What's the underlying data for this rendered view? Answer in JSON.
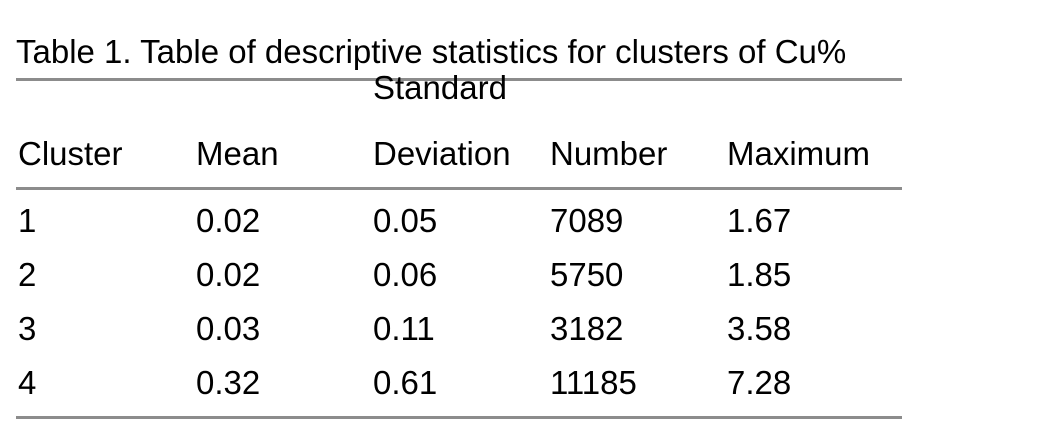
{
  "caption": "Table 1. Table of descriptive statistics for clusters of Cu%",
  "columns": {
    "cluster": "Cluster",
    "mean": "Mean",
    "sd_line1": "Standard",
    "sd_line2": "Deviation",
    "number": "Number",
    "maximum": "Maximum"
  },
  "rows": [
    {
      "cluster": "1",
      "mean": "0.02",
      "sd": "0.05",
      "number": "7089",
      "maximum": "1.67"
    },
    {
      "cluster": "2",
      "mean": "0.02",
      "sd": "0.06",
      "number": "5750",
      "maximum": "1.85"
    },
    {
      "cluster": "3",
      "mean": "0.03",
      "sd": "0.11",
      "number": "3182",
      "maximum": "3.58"
    },
    {
      "cluster": "4",
      "mean": "0.32",
      "sd": "0.61",
      "number": "11185",
      "maximum": "7.28"
    }
  ],
  "colors": {
    "rule": "#8c8c8c",
    "text": "#000000"
  }
}
